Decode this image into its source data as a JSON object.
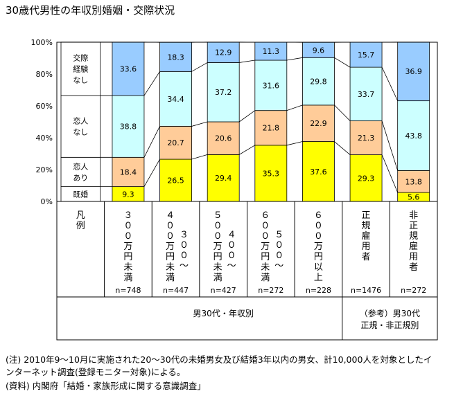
{
  "title": "30歳代男性の年収別婚姻・交際状況",
  "chart_data": {
    "type": "bar",
    "stacked": true,
    "ylim": [
      0,
      100
    ],
    "y_ticks": [
      "0%",
      "20%",
      "40%",
      "60%",
      "80%",
      "100%"
    ],
    "legend_title": "凡例",
    "categories": [
      "300万円未満",
      "300〜400万円未満",
      "400〜500万円未満",
      "500〜600万円未満",
      "600万円以上",
      "正規雇用者",
      "非正規雇用者"
    ],
    "n_labels": [
      "n=748",
      "n=447",
      "n=427",
      "n=272",
      "n=228",
      "n=1476",
      "n=272"
    ],
    "series": [
      {
        "name": "既婚",
        "color": "#ffff00",
        "values": [
          9.3,
          26.5,
          29.4,
          35.3,
          37.6,
          29.3,
          5.6
        ]
      },
      {
        "name": "恋人あり",
        "color": "#ffcc99",
        "values": [
          18.4,
          20.7,
          20.6,
          21.8,
          22.9,
          21.3,
          13.8
        ]
      },
      {
        "name": "恋人なし",
        "color": "#ccffff",
        "values": [
          38.8,
          34.4,
          37.2,
          31.6,
          29.8,
          33.7,
          43.8
        ]
      },
      {
        "name": "交際経験なし",
        "color": "#99ccff",
        "values": [
          33.6,
          18.3,
          12.9,
          11.3,
          9.6,
          15.7,
          36.9
        ]
      }
    ],
    "group_labels": [
      "男30代・年収別",
      "（参考）男30代正規・非正規別"
    ]
  },
  "notes": [
    "(注) 2010年9〜10月に実施された20〜30代の未婚男女及び結婚3年以内の男女、計10,000人を対象としたインターネット調査(登録モニター対象)による。",
    "(資料) 内閣府「結婚・家族形成に関する意識調査」"
  ]
}
